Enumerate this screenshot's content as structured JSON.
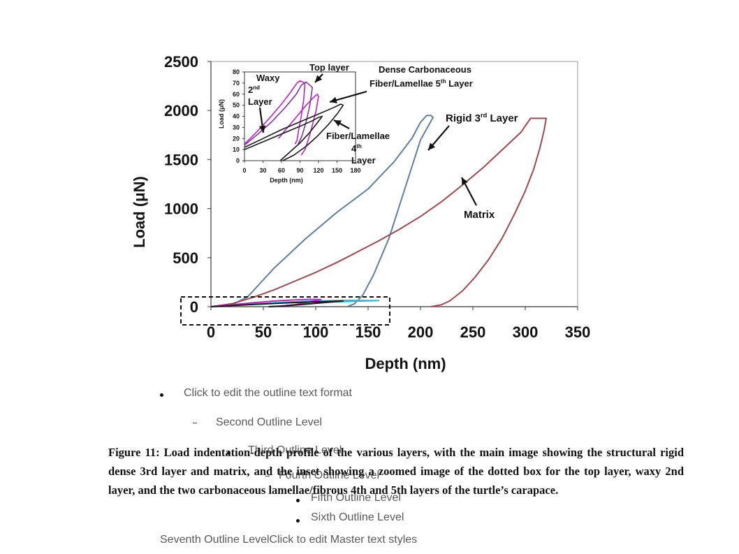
{
  "chart_data": {
    "type": "line",
    "xlabel": "Depth (nm)",
    "ylabel": "Load (μN)",
    "xlim": [
      0,
      350
    ],
    "ylim": [
      0,
      2500
    ],
    "xticks": [
      "0",
      "50",
      "100",
      "150",
      "200",
      "250",
      "300",
      "350"
    ],
    "yticks": [
      "0",
      "500",
      "1000",
      "1500",
      "2000",
      "2500"
    ],
    "annotations": [
      {
        "label": "Rigid 3rd Layer",
        "text": "Rigid 3",
        "sup": "rd",
        "tail": " Layer"
      },
      {
        "label": "Matrix",
        "text": "Matrix",
        "sup": "",
        "tail": ""
      }
    ],
    "series": [
      {
        "color": "#5f7f9e",
        "x": [
          0,
          20,
          35,
          60,
          90,
          120,
          150,
          175,
          192,
          200,
          206,
          210,
          212,
          200,
          185,
          170,
          155,
          145,
          137,
          130
        ],
        "y": [
          0,
          20,
          100,
          390,
          690,
          960,
          1200,
          1480,
          1720,
          1880,
          1950,
          1950,
          1930,
          1700,
          1200,
          700,
          320,
          120,
          30,
          0
        ]
      },
      {
        "color": "#9a4a50",
        "x": [
          0,
          20,
          40,
          60,
          80,
          100,
          120,
          140,
          160,
          180,
          200,
          220,
          240,
          260,
          280,
          296,
          305,
          320,
          318,
          314,
          308,
          300,
          290,
          278,
          265,
          252,
          240,
          228,
          220,
          210
        ],
        "y": [
          0,
          30,
          95,
          170,
          260,
          350,
          450,
          560,
          670,
          790,
          920,
          1070,
          1240,
          1420,
          1620,
          1780,
          1920,
          1920,
          1800,
          1620,
          1400,
          1180,
          950,
          700,
          480,
          300,
          160,
          60,
          20,
          0
        ]
      },
      {
        "color": "#21c4d4",
        "x": [
          0,
          30,
          60,
          90,
          110,
          130,
          160,
          120,
          80,
          60
        ],
        "y": [
          0,
          20,
          40,
          55,
          60,
          65,
          62,
          50,
          20,
          0
        ]
      },
      {
        "color": "#c020c0",
        "x": [
          0,
          20,
          40,
          60,
          80,
          95,
          105,
          95,
          80,
          65,
          55
        ],
        "y": [
          0,
          20,
          40,
          58,
          70,
          75,
          73,
          50,
          20,
          5,
          0
        ]
      },
      {
        "color": "#1a1a1a",
        "x": [
          0,
          25,
          50,
          75,
          100,
          120,
          126,
          110,
          90,
          70,
          55
        ],
        "y": [
          0,
          14,
          28,
          40,
          50,
          56,
          58,
          45,
          25,
          8,
          0
        ]
      }
    ],
    "inset": {
      "type": "line",
      "xlabel": "Depth (nm)",
      "ylabel": "Load (μN)",
      "xlim": [
        0,
        180
      ],
      "ylim": [
        0,
        80
      ],
      "xticks": [
        "0",
        "30",
        "60",
        "90",
        "120",
        "150",
        "180"
      ],
      "yticks": [
        "0",
        "10",
        "20",
        "30",
        "40",
        "50",
        "60",
        "70",
        "80"
      ],
      "annotations": [
        {
          "label": "Top layer",
          "lines": [
            {
              "t": "Top layer"
            }
          ]
        },
        {
          "label": "Waxy 2nd Layer",
          "lines": [
            {
              "t": "Waxy"
            },
            {
              "t": "2",
              "sup": "nd"
            },
            {
              "t": "Layer"
            }
          ]
        },
        {
          "label": "Dense Carbonaceous Fiber/Lamellae 5th Layer",
          "lines": [
            {
              "t": "Dense Carbonaceous"
            },
            {
              "t": "Fiber/Lamellae 5",
              "sup": "th",
              "tail": " Layer"
            }
          ]
        },
        {
          "label": "Fiber/Lamellae 4th Layer",
          "lines": [
            {
              "t": "Fiber/Lamellae"
            },
            {
              "t": "4",
              "sup": "th"
            },
            {
              "t": "Layer"
            }
          ]
        }
      ],
      "series": [
        {
          "color": "#c020c0",
          "x": [
            0,
            20,
            40,
            60,
            75,
            85,
            90,
            98,
            96,
            92,
            88,
            85,
            82
          ],
          "y": [
            15,
            26,
            38,
            51,
            62,
            70,
            72,
            70,
            55,
            40,
            28,
            18,
            15
          ]
        },
        {
          "color": "#7a3aa0",
          "x": [
            0,
            22,
            44,
            66,
            84,
            92,
            100,
            110,
            106,
            100,
            93,
            87
          ],
          "y": [
            14,
            24,
            35,
            48,
            60,
            68,
            71,
            66,
            50,
            35,
            22,
            15
          ]
        },
        {
          "color": "#c020c0",
          "x": [
            55,
            70,
            85,
            100,
            112,
            118,
            120,
            116,
            110,
            104,
            98,
            92
          ],
          "y": [
            20,
            30,
            40,
            50,
            57,
            60,
            58,
            45,
            32,
            20,
            10,
            5
          ]
        },
        {
          "color": "#1a1a1a",
          "x": [
            0,
            30,
            60,
            90,
            120,
            145,
            156,
            160,
            150,
            135,
            118,
            100,
            80,
            62
          ],
          "y": [
            12,
            20,
            28,
            35,
            42,
            48,
            51,
            50,
            42,
            32,
            22,
            13,
            5,
            0
          ]
        },
        {
          "color": "#1a1a1a",
          "x": [
            0,
            30,
            60,
            90,
            110,
            120,
            126,
            118,
            105,
            90,
            72,
            58
          ],
          "y": [
            10,
            17,
            24,
            31,
            36,
            39,
            40,
            34,
            25,
            16,
            7,
            0
          ]
        }
      ]
    }
  },
  "outline": {
    "level1": "Click to edit the outline text format",
    "level2": "Second Outline Level",
    "level3": "Third Outline Level",
    "level4": "Fourth Outline Level",
    "level5": "Fifth Outline Level",
    "level6": "Sixth Outline Level",
    "level7": "Seventh Outline LevelClick to edit Master text styles"
  },
  "caption": "Figure 11: Load indentation-depth profile of the various layers, with the main image showing the structural rigid dense 3rd layer and matrix, and the inset showing a zoomed image of the dotted box for the top layer, waxy 2nd layer, and the two carbonaceous lamellae/fibrous 4th and 5th layers of the turtle’s carapace."
}
